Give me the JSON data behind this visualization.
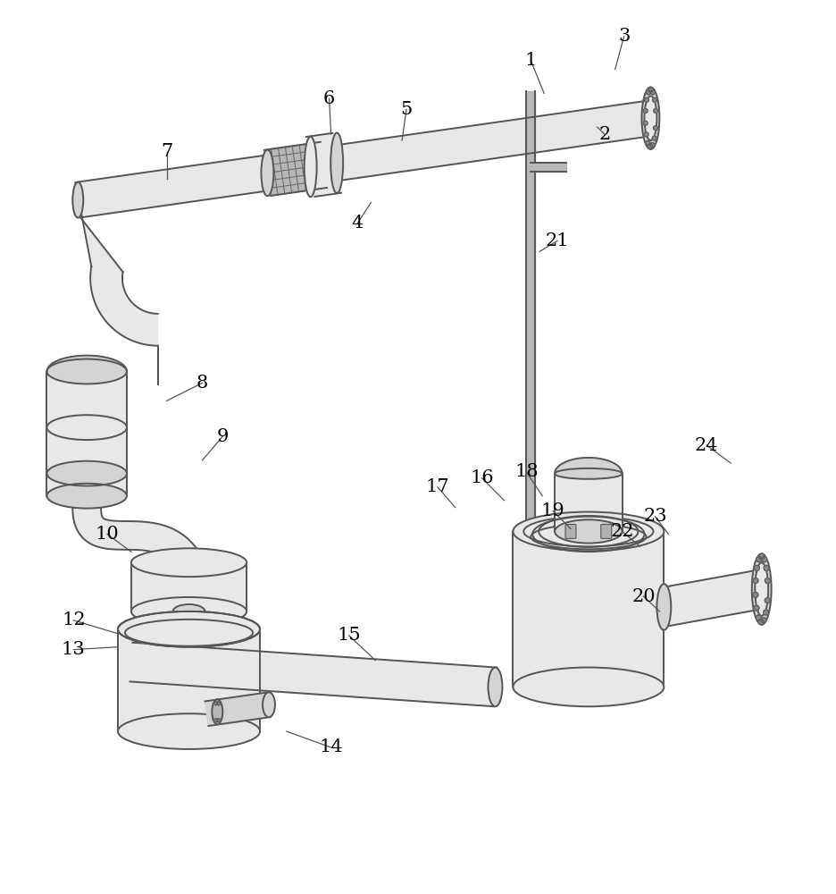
{
  "bg_color": "#ffffff",
  "line_color": "#555555",
  "fill_light": "#e8e8e8",
  "fill_mid": "#d4d4d4",
  "fill_dark": "#c0c0c0",
  "line_width": 1.4,
  "label_fontsize": 15,
  "label_color": "#000000"
}
